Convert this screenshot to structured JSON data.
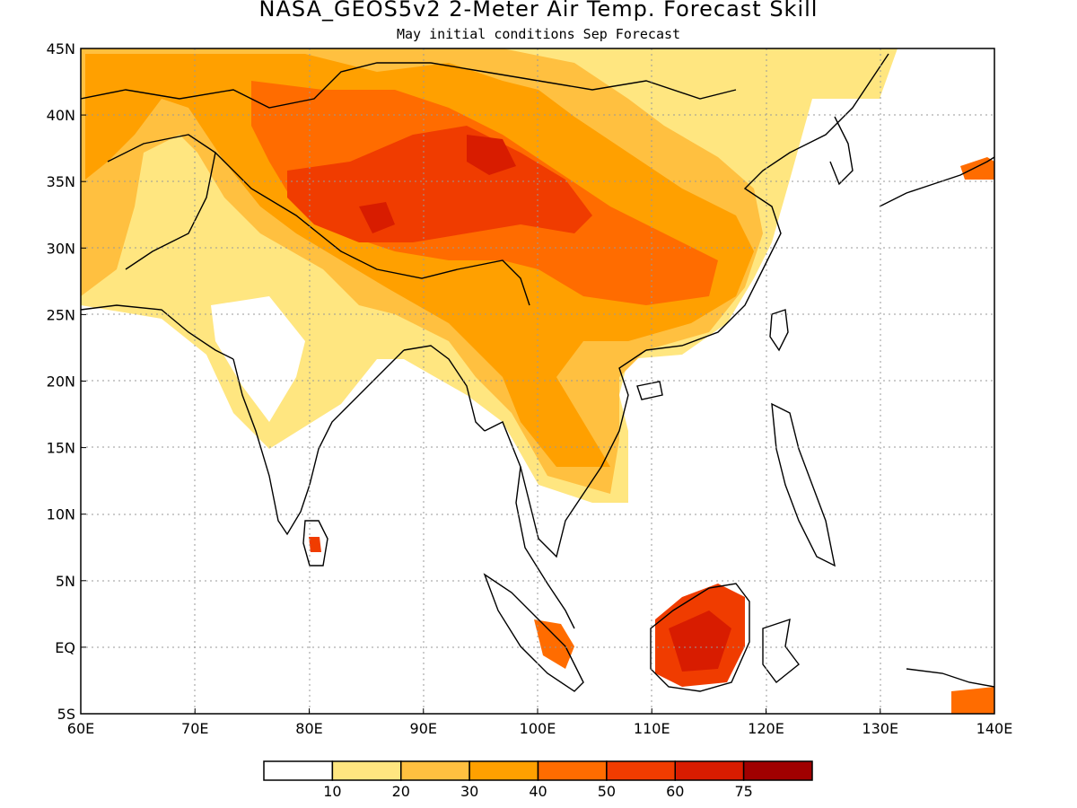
{
  "title": "NASA_GEOS5v2 2-Meter Air Temp. Forecast Skill",
  "subtitle": "May initial conditions  Sep Forecast",
  "map": {
    "lon_range": [
      60,
      140
    ],
    "lat_range": [
      -5,
      45
    ],
    "lon_ticks": [
      {
        "value": 60,
        "label": "60E"
      },
      {
        "value": 70,
        "label": "70E"
      },
      {
        "value": 80,
        "label": "80E"
      },
      {
        "value": 90,
        "label": "90E"
      },
      {
        "value": 100,
        "label": "100E"
      },
      {
        "value": 110,
        "label": "110E"
      },
      {
        "value": 120,
        "label": "120E"
      },
      {
        "value": 130,
        "label": "130E"
      },
      {
        "value": 140,
        "label": "140E"
      }
    ],
    "lat_ticks": [
      {
        "value": 45,
        "label": "45N"
      },
      {
        "value": 40,
        "label": "40N"
      },
      {
        "value": 35,
        "label": "35N"
      },
      {
        "value": 30,
        "label": "30N"
      },
      {
        "value": 25,
        "label": "25N"
      },
      {
        "value": 20,
        "label": "20N"
      },
      {
        "value": 15,
        "label": "15N"
      },
      {
        "value": 10,
        "label": "10N"
      },
      {
        "value": 5,
        "label": "5N"
      },
      {
        "value": 0,
        "label": "EQ"
      },
      {
        "value": -5,
        "label": "5S"
      }
    ]
  },
  "legend": {
    "colors": [
      "#ffffff",
      "#ffe680",
      "#ffc040",
      "#ffa000",
      "#ff6c00",
      "#f03c00",
      "#d81c00",
      "#a00000"
    ],
    "labels": [
      "10",
      "20",
      "30",
      "40",
      "50",
      "60",
      "75"
    ]
  }
}
